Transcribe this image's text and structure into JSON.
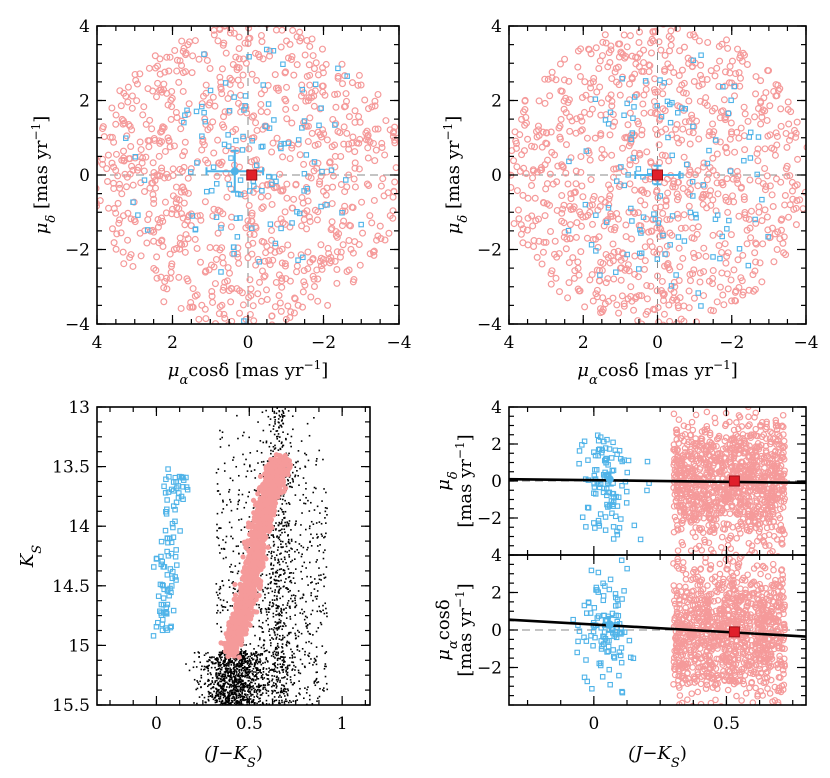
{
  "chart_data": [
    {
      "id": "pm-field-a",
      "type": "scatter",
      "xlabel_prefix": "μ",
      "xlabel_sub": "α",
      "xlabel_rest": "cosδ [mas yr",
      "xlabel_exp": "−1",
      "xlabel_close": "]",
      "ylabel_prefix": "μ",
      "ylabel_sub": "δ",
      "ylabel_rest": " [mas yr",
      "ylabel_exp": "−1",
      "ylabel_close": "]",
      "xlim": [
        4,
        -4
      ],
      "ylim": [
        -4,
        4
      ],
      "xticks": [
        4,
        2,
        0,
        -2,
        -4
      ],
      "xtick_labels": [
        "4",
        "2",
        "0",
        "−2",
        "−4"
      ],
      "yticks": [
        -4,
        -2,
        0,
        2,
        4
      ],
      "ytick_labels": [
        "−4",
        "−2",
        "0",
        "2",
        "4"
      ],
      "ref_lines": {
        "x": 0,
        "y": 0
      },
      "series": [
        {
          "kind": "field-stars",
          "color": "#f59a9a",
          "marker": "open-circle",
          "n_approx": 900,
          "distribution": "uniform-disk",
          "center": [
            0,
            0
          ],
          "radius": 4.1
        },
        {
          "kind": "blue-stars",
          "color": "#4fb3e8",
          "marker": "open-square",
          "n_approx": 110,
          "center": [
            0.1,
            0.2
          ],
          "spread": 1.5
        }
      ],
      "mean_points": [
        {
          "color": "#4fb3e8",
          "x": 0.35,
          "y": 0.1,
          "xerr": 0.75,
          "yerr": 0.55
        },
        {
          "color": "#e0202a",
          "x": -0.1,
          "y": 0.0,
          "xerr": 0.0,
          "yerr": 0.0
        }
      ]
    },
    {
      "id": "pm-field-b",
      "type": "scatter",
      "xlabel_prefix": "μ",
      "xlabel_sub": "α",
      "xlabel_rest": "cosδ [mas yr",
      "xlabel_exp": "−1",
      "xlabel_close": "]",
      "ylabel_prefix": "μ",
      "ylabel_sub": "δ",
      "ylabel_rest": " [mas yr",
      "ylabel_exp": "−1",
      "ylabel_close": "]",
      "xlim": [
        4,
        -4
      ],
      "ylim": [
        -4,
        4
      ],
      "xticks": [
        4,
        2,
        0,
        -2,
        -4
      ],
      "xtick_labels": [
        "4",
        "2",
        "0",
        "−2",
        "−4"
      ],
      "yticks": [
        -4,
        -2,
        0,
        2,
        4
      ],
      "ytick_labels": [
        "−4",
        "−2",
        "0",
        "2",
        "4"
      ],
      "ref_lines": {
        "x": 0,
        "y": 0
      },
      "series": [
        {
          "kind": "field-stars",
          "color": "#f59a9a",
          "marker": "open-circle",
          "n_approx": 950,
          "distribution": "uniform-disk",
          "center": [
            0,
            0
          ],
          "radius": 4.1
        },
        {
          "kind": "blue-stars",
          "color": "#4fb3e8",
          "marker": "open-square",
          "n_approx": 110,
          "center": [
            -0.2,
            -0.1
          ],
          "spread": 1.6
        }
      ],
      "mean_points": [
        {
          "color": "#4fb3e8",
          "x": 0.0,
          "y": 0.0,
          "xerr": 0.6,
          "yerr": 0.25
        },
        {
          "color": "#e0202a",
          "x": 0.0,
          "y": 0.0,
          "xerr": 0.0,
          "yerr": 0.0
        }
      ]
    },
    {
      "id": "cmd",
      "type": "scatter",
      "xlabel_prefix": "(J−K",
      "xlabel_sub": "S",
      "xlabel_close": ")",
      "ylabel_prefix": "K",
      "ylabel_sub": "S",
      "xlim": [
        -0.32,
        1.15
      ],
      "ylim": [
        15.5,
        13.0
      ],
      "xticks": [
        0,
        0.5,
        1
      ],
      "xtick_labels": [
        "0",
        "0.5",
        "1"
      ],
      "yticks": [
        13,
        13.5,
        14,
        14.5,
        15,
        15.5
      ],
      "ytick_labels": [
        "13",
        "13.5",
        "14",
        "14.5",
        "15",
        "15.5"
      ],
      "series": [
        {
          "kind": "field-stars",
          "color": "#000000",
          "marker": "dot",
          "n_approx": 2500
        },
        {
          "kind": "red-giant-branch",
          "color": "#f59a9a",
          "marker": "filled-circle",
          "n_approx": 1500,
          "ridge": [
            [
              0.4,
              15.05
            ],
            [
              0.45,
              14.8
            ],
            [
              0.5,
              14.5
            ],
            [
              0.55,
              14.1
            ],
            [
              0.6,
              13.8
            ],
            [
              0.63,
              13.6
            ],
            [
              0.66,
              13.45
            ]
          ]
        },
        {
          "kind": "blue-stars",
          "color": "#4fb3e8",
          "marker": "open-square",
          "n_approx": 100,
          "ridge": [
            [
              0.03,
              14.95
            ],
            [
              0.05,
              14.5
            ],
            [
              0.07,
              14.1
            ],
            [
              0.1,
              13.75
            ],
            [
              0.13,
              13.55
            ]
          ]
        }
      ]
    },
    {
      "id": "pmdec-color",
      "type": "scatter",
      "ylabel_prefix": "μ",
      "ylabel_sub": "δ",
      "ylabel_line2": "[mas yr",
      "ylabel_exp": "−1",
      "ylabel_close": "]",
      "xlim": [
        -0.32,
        0.8
      ],
      "ylim": [
        -4,
        4
      ],
      "xticks": [
        0,
        0.5
      ],
      "xtick_labels": [],
      "yticks": [
        -2,
        0,
        2,
        4
      ],
      "ytick_labels": [
        "−2",
        "0",
        "2",
        "4"
      ],
      "ref_lines": {
        "y": 0
      },
      "fit_line": {
        "x": [
          -0.32,
          0.8
        ],
        "y": [
          0.1,
          -0.1
        ]
      },
      "series": [
        {
          "kind": "blue-stars",
          "color": "#4fb3e8",
          "marker": "open-square",
          "n_approx": 110,
          "x_center": 0.05,
          "x_spread": 0.08
        },
        {
          "kind": "field-stars",
          "color": "#f59a9a",
          "marker": "open-circle",
          "n_approx": 1100,
          "x_range": [
            0.3,
            0.72
          ]
        }
      ],
      "mean_points": [
        {
          "color": "#4fb3e8",
          "x": 0.06,
          "y": 0.1,
          "xerr": 0.0,
          "yerr": 0.35
        },
        {
          "color": "#e0202a",
          "x": 0.53,
          "y": 0.0,
          "xerr": 0.0,
          "yerr": 0.0
        }
      ]
    },
    {
      "id": "pmra-color",
      "type": "scatter",
      "xlabel_prefix": "(J−K",
      "xlabel_sub": "S",
      "xlabel_close": ")",
      "ylabel_prefix": "μ",
      "ylabel_sub": "α",
      "ylabel_rest": "cosδ",
      "ylabel_line2": "[mas yr",
      "ylabel_exp": "−1",
      "ylabel_close": "]",
      "xlim": [
        -0.32,
        0.8
      ],
      "ylim": [
        -4,
        4
      ],
      "xticks": [
        0,
        0.5
      ],
      "xtick_labels": [
        "0",
        "0.5"
      ],
      "yticks": [
        -2,
        0,
        2,
        4
      ],
      "ytick_labels": [
        "−2",
        "0",
        "2",
        "4"
      ],
      "ref_lines": {
        "y": 0
      },
      "fit_line": {
        "x": [
          -0.32,
          0.8
        ],
        "y": [
          0.55,
          -0.35
        ]
      },
      "series": [
        {
          "kind": "blue-stars",
          "color": "#4fb3e8",
          "marker": "open-square",
          "n_approx": 110,
          "x_center": 0.05,
          "x_spread": 0.08
        },
        {
          "kind": "field-stars",
          "color": "#f59a9a",
          "marker": "open-circle",
          "n_approx": 1100,
          "x_range": [
            0.3,
            0.72
          ]
        }
      ],
      "mean_points": [
        {
          "color": "#4fb3e8",
          "x": 0.06,
          "y": 0.3,
          "xerr": 0.0,
          "yerr": 0.4
        },
        {
          "color": "#e0202a",
          "x": 0.53,
          "y": -0.1,
          "xerr": 0.0,
          "yerr": 0.0
        }
      ]
    }
  ]
}
